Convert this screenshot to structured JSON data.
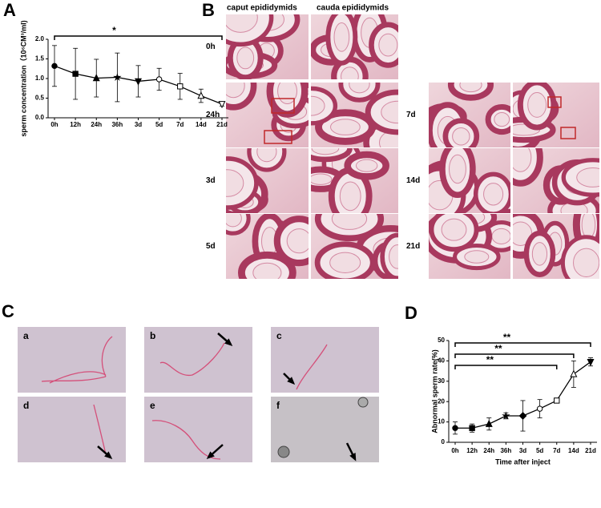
{
  "panel_labels": [
    "A",
    "B",
    "C",
    "D"
  ],
  "histology": {
    "columns": [
      "caput epididymids",
      "cauda epididymids"
    ],
    "rows_left": [
      "0h",
      "24h",
      "3d",
      "5d"
    ],
    "rows_right": [
      "7d",
      "14d",
      "21d"
    ]
  },
  "sperm_images": {
    "labels": [
      "a",
      "b",
      "c",
      "d",
      "e",
      "f"
    ]
  },
  "chart_data": [
    {
      "type": "line",
      "y_label": "sperm concentration（10⁶CM³/ml)",
      "categories": [
        "0h",
        "12h",
        "24h",
        "36h",
        "3d",
        "5d",
        "7d",
        "14d",
        "21d"
      ],
      "series": [
        {
          "values": [
            1.32,
            1.12,
            1.01,
            1.03,
            0.93,
            0.98,
            0.8,
            0.56,
            0.35
          ],
          "errors": [
            0.52,
            0.65,
            0.48,
            0.62,
            0.4,
            0.28,
            0.33,
            0.17,
            0.05
          ],
          "color": "#000000"
        }
      ],
      "markers": [
        "circle",
        "square",
        "triangle",
        "star",
        "triangle-down",
        "circle-open",
        "square-open",
        "triangle-open",
        "triangle-down-open"
      ],
      "ylim": [
        0,
        2
      ],
      "yticks": [
        {
          "value": 0,
          "label": "0.0"
        },
        {
          "value": 0.5,
          "label": "0.5"
        },
        {
          "value": 1,
          "label": "1.0"
        },
        {
          "value": 1.5,
          "label": "1.5"
        },
        {
          "value": 2,
          "label": "2.0"
        }
      ],
      "annotations": [
        {
          "text": "*",
          "from": "0h",
          "to": "21d"
        }
      ]
    },
    {
      "type": "line",
      "y_label": "Abnormal sperm rate(%)",
      "x_label": "Time after inject",
      "categories": [
        "0h",
        "12h",
        "24h",
        "36h",
        "3d",
        "5d",
        "7d",
        "14d",
        "21d"
      ],
      "series": [
        {
          "values": [
            7,
            7,
            9,
            13,
            13,
            16.5,
            20.5,
            33.5,
            39.5
          ],
          "errors": [
            3,
            2,
            3,
            1.5,
            7.5,
            4.5,
            1,
            6.5,
            2
          ],
          "color": "#000000"
        }
      ],
      "markers": [
        "circle",
        "square",
        "triangle",
        "star",
        "diamond",
        "circle-open",
        "square-open",
        "triangle-open",
        "triangle-down"
      ],
      "ylim": [
        0,
        50
      ],
      "yticks": [
        0,
        10,
        20,
        30,
        40,
        50
      ],
      "annotations": [
        {
          "text": "**",
          "from": "0h",
          "to": "21d"
        },
        {
          "text": "**",
          "from": "0h",
          "to": "14d"
        },
        {
          "text": "**",
          "from": "0h",
          "to": "7d"
        }
      ]
    }
  ]
}
